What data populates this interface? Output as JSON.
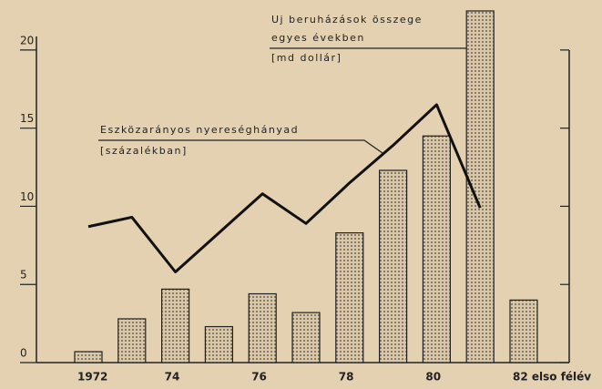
{
  "chart_data": {
    "type": "bar+line",
    "categories": [
      "1972",
      null,
      "74",
      null,
      "76",
      null,
      "78",
      null,
      "80",
      null,
      "82 elso félév"
    ],
    "series": [
      {
        "name": "Uj beruházások összege",
        "type": "bar",
        "color": "#d9c7a7",
        "values": [
          0.7,
          2.8,
          4.7,
          2.3,
          4.4,
          3.2,
          8.3,
          12.3,
          14.5,
          22.5,
          4.0
        ]
      },
      {
        "name": "Eszközarányos nyereséghányad",
        "type": "line",
        "color": "#111111",
        "values": [
          8.7,
          9.3,
          5.8,
          8.3,
          10.8,
          8.9,
          11.5,
          13.9,
          16.5,
          9.9,
          null
        ]
      }
    ],
    "annotations": [
      "egyes években",
      "[md dollár]",
      "[százalékban]"
    ],
    "ylim": [
      0,
      22.5
    ],
    "yticks": [
      0,
      5,
      10,
      15,
      20
    ]
  }
}
